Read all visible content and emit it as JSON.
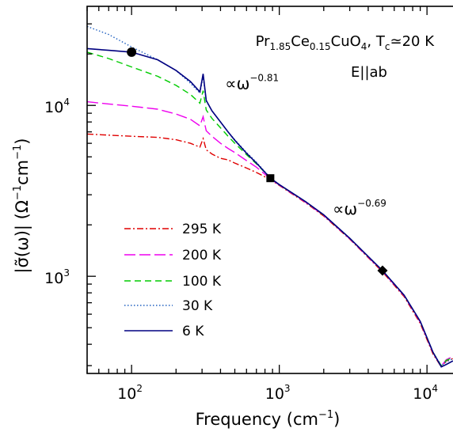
{
  "chart_data": {
    "type": "line",
    "title": "Pr1.85Ce0.15CuO4, Tc≃20 K",
    "title_parts": {
      "pr": "Pr",
      "pr_sub": "1.85",
      "ce": "Ce",
      "ce_sub": "0.15",
      "cuo": "CuO",
      "cuo_sub": "4",
      "tc_sep": ", T",
      "tc_sub": "c",
      "tc_val": "≃20 K"
    },
    "subtitle": "E||ab",
    "xlabel": "Frequency (cm⁻¹)",
    "xlabel_parts": {
      "main": "Frequency (cm",
      "sup": "−1",
      "close": ")"
    },
    "ylabel": "|σ̃(ω)| (Ω⁻¹cm⁻¹)",
    "ylabel_parts": {
      "a": "|σ̃(ω)| (Ω",
      "sup1": "−1",
      "b": "cm",
      "sup2": "−1",
      "c": ")"
    },
    "xscale": "log",
    "yscale": "log",
    "xlim": [
      50,
      15000
    ],
    "ylim": [
      270,
      38000
    ],
    "xticks": [
      {
        "value": 100,
        "base": "10",
        "exp": "2"
      },
      {
        "value": 1000,
        "base": "10",
        "exp": "3"
      },
      {
        "value": 10000,
        "base": "10",
        "exp": "4"
      }
    ],
    "yticks": [
      {
        "value": 1000,
        "base": "10",
        "exp": "3"
      },
      {
        "value": 10000,
        "base": "10",
        "exp": "4"
      }
    ],
    "legend_position": "lower-left",
    "annotations": [
      {
        "id": "ann-081",
        "prefix": "∝ω",
        "sup": "−0.81",
        "x": 430,
        "y": 12500
      },
      {
        "id": "ann-069",
        "prefix": "∝ω",
        "sup": "−0.69",
        "x": 2300,
        "y": 2300
      }
    ],
    "markers": [
      {
        "shape": "circle",
        "x": 100,
        "y": 20500
      },
      {
        "shape": "square",
        "x": 870,
        "y": 3750
      },
      {
        "shape": "diamond",
        "x": 5000,
        "y": 1080
      }
    ],
    "series": [
      {
        "name": "295 K",
        "color": "#e00000",
        "dash": "8,3,2,3",
        "x": [
          50,
          70,
          100,
          150,
          200,
          250,
          290,
          305,
          320,
          350,
          400,
          450,
          500,
          600,
          700,
          870,
          1000,
          1500,
          2000,
          3000,
          5000,
          7000,
          9000,
          11000,
          12500,
          13500,
          15000
        ],
        "y": [
          6800,
          6700,
          6600,
          6500,
          6300,
          6000,
          5700,
          6400,
          5500,
          5200,
          4900,
          4800,
          4600,
          4300,
          4050,
          3680,
          3400,
          2700,
          2250,
          1650,
          1060,
          760,
          530,
          350,
          295,
          320,
          330
        ]
      },
      {
        "name": "200 K",
        "color": "#ee00ee",
        "dash": "14,5",
        "x": [
          50,
          70,
          100,
          150,
          200,
          250,
          290,
          305,
          320,
          350,
          400,
          450,
          500,
          600,
          700,
          870,
          1000,
          1500,
          2000,
          3000,
          5000,
          7000,
          9000,
          11000,
          12500,
          13500,
          15000
        ],
        "y": [
          10500,
          10200,
          9900,
          9500,
          8900,
          8300,
          7600,
          8600,
          7100,
          6600,
          6000,
          5600,
          5300,
          4750,
          4350,
          3720,
          3420,
          2720,
          2270,
          1660,
          1070,
          770,
          540,
          355,
          298,
          325,
          340
        ]
      },
      {
        "name": "100 K",
        "color": "#00cc00",
        "dash": "8,5",
        "x": [
          50,
          70,
          100,
          150,
          200,
          250,
          290,
          305,
          320,
          350,
          400,
          450,
          500,
          600,
          700,
          870,
          1000,
          1500,
          2000,
          3000,
          5000,
          7000,
          9000,
          11000,
          12500,
          13500,
          15000
        ],
        "y": [
          20500,
          18800,
          16800,
          14800,
          13100,
          11600,
          10300,
          12200,
          9400,
          8400,
          7400,
          6600,
          6000,
          5150,
          4550,
          3760,
          3430,
          2740,
          2280,
          1670,
          1080,
          775,
          545,
          358,
          300,
          322,
          335
        ]
      },
      {
        "name": "30 K",
        "color": "#2060c0",
        "dash": "1.5,2.5",
        "x": [
          50,
          70,
          100,
          150,
          200,
          250,
          290,
          305,
          320,
          350,
          400,
          450,
          500,
          600,
          700,
          870,
          1000,
          1500,
          2000,
          3000,
          5000,
          7000,
          9000,
          11000,
          12500,
          13500,
          15000
        ],
        "y": [
          29000,
          26000,
          22000,
          18500,
          16000,
          13500,
          11800,
          14800,
          10600,
          9300,
          8000,
          7000,
          6300,
          5300,
          4650,
          3760,
          3440,
          2740,
          2290,
          1670,
          1080,
          775,
          545,
          358,
          300,
          315,
          330
        ]
      },
      {
        "name": "6 K",
        "color": "#000080",
        "dash": "",
        "x": [
          50,
          70,
          100,
          150,
          200,
          250,
          290,
          305,
          320,
          350,
          400,
          450,
          500,
          600,
          700,
          870,
          1000,
          1500,
          2000,
          3000,
          5000,
          7000,
          9000,
          11000,
          12500,
          13500,
          15000
        ],
        "y": [
          21500,
          21000,
          20500,
          18500,
          16000,
          13800,
          12000,
          15300,
          10700,
          9300,
          8000,
          7000,
          6250,
          5250,
          4600,
          3750,
          3440,
          2740,
          2290,
          1670,
          1080,
          775,
          545,
          358,
          295,
          305,
          320
        ]
      }
    ]
  }
}
